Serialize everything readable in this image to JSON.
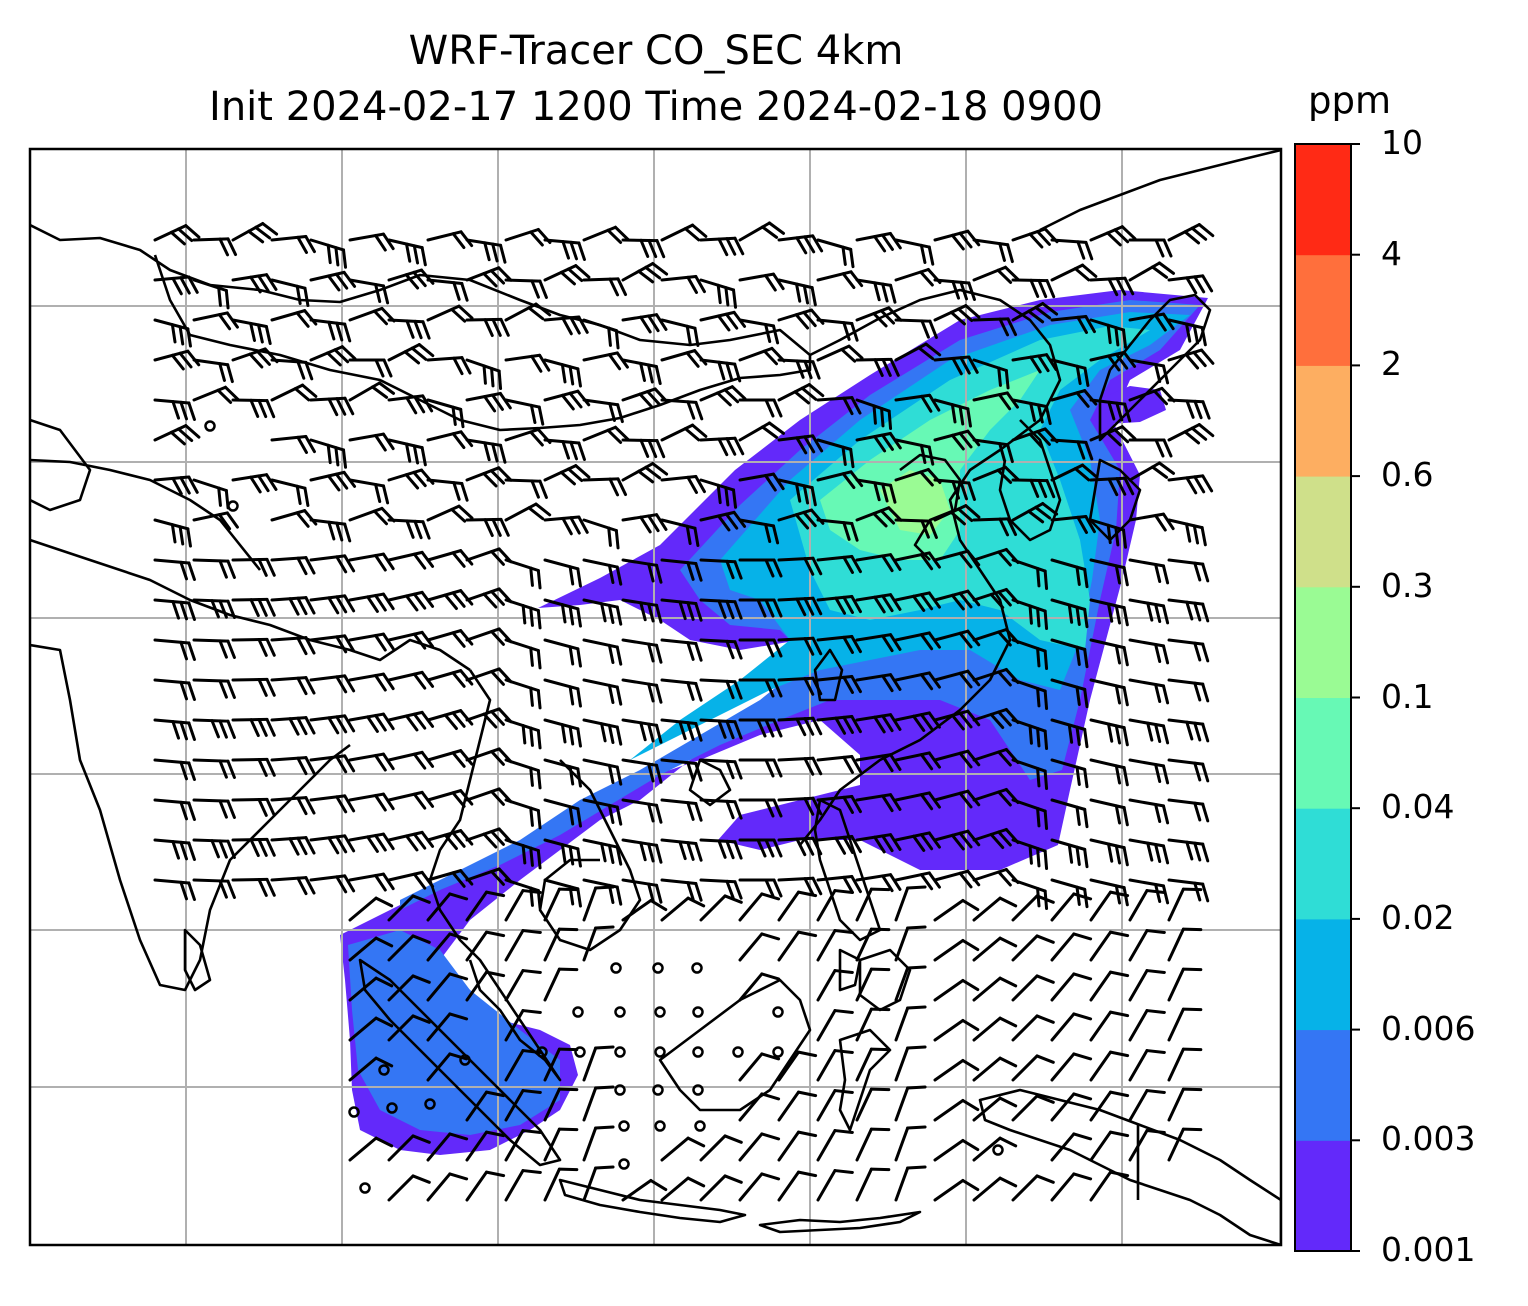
{
  "title": {
    "line1": "WRF-Tracer CO_SEC 4km",
    "line2": "Init 2024-02-17 1200 Time 2024-02-18 0900"
  },
  "colorbar": {
    "unit": "ppm",
    "levels": [
      "0.001",
      "0.003",
      "0.006",
      "0.02",
      "0.04",
      "0.1",
      "0.3",
      "0.6",
      "2",
      "4",
      "10"
    ],
    "colors": [
      "#6329fa",
      "#3476f4",
      "#06b2e8",
      "#2fddd6",
      "#67f9b5",
      "#9afb94",
      "#cfe08a",
      "#fdae61",
      "#ff6f3c",
      "#ff2a15"
    ]
  },
  "map": {
    "domain": "East / Southeast Asia",
    "gridlines": true,
    "frame_color": "#000000",
    "grid_color": "#b0b0b0"
  }
}
